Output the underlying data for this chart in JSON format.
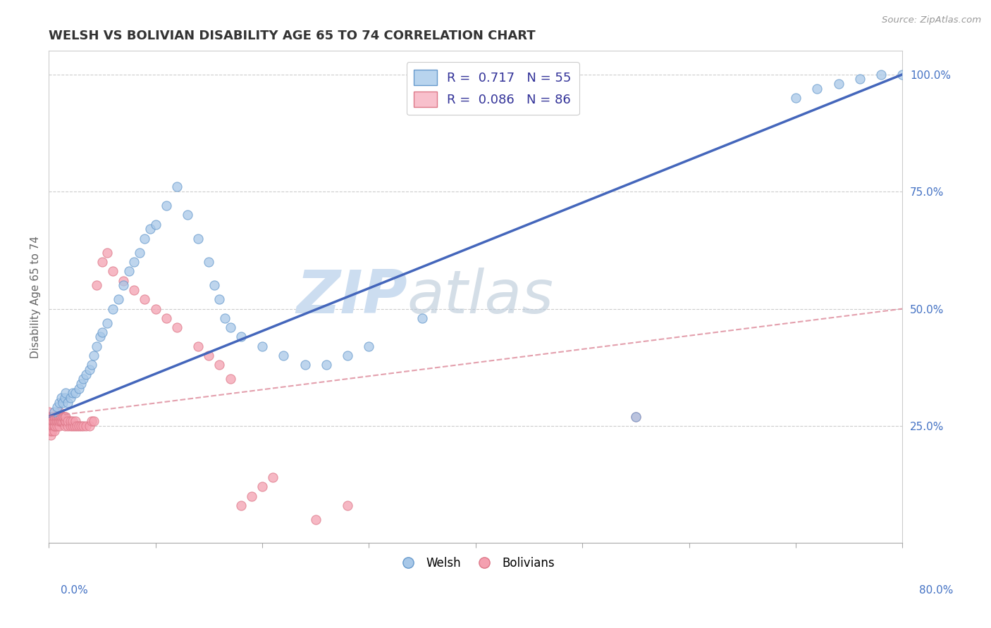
{
  "title": "WELSH VS BOLIVIAN DISABILITY AGE 65 TO 74 CORRELATION CHART",
  "source": "Source: ZipAtlas.com",
  "ylabel": "Disability Age 65 to 74",
  "welsh_R": 0.717,
  "welsh_N": 55,
  "bolivian_R": 0.086,
  "bolivian_N": 86,
  "welsh_color": "#a8c8e8",
  "welsh_edge_color": "#6699cc",
  "bolivian_color": "#f4a0b0",
  "bolivian_edge_color": "#dd7788",
  "welsh_trend_color": "#4466bb",
  "bolivian_trend_color": "#dd8899",
  "legend_welsh_fill": "#b8d4ee",
  "legend_bolivian_fill": "#f8c0cc",
  "watermark_color": "#ccddf0",
  "xmin": 0.0,
  "xmax": 0.8,
  "ymin": 0.0,
  "ymax": 1.05,
  "welsh_trend_x0": 0.0,
  "welsh_trend_y0": 0.27,
  "welsh_trend_x1": 0.8,
  "welsh_trend_y1": 1.0,
  "bolivian_trend_x0": 0.0,
  "bolivian_trend_y0": 0.27,
  "bolivian_trend_x1": 0.8,
  "bolivian_trend_y1": 0.5,
  "welsh_scatter_x": [
    0.005,
    0.008,
    0.01,
    0.012,
    0.013,
    0.015,
    0.016,
    0.018,
    0.02,
    0.022,
    0.025,
    0.028,
    0.03,
    0.032,
    0.035,
    0.038,
    0.04,
    0.042,
    0.045,
    0.048,
    0.05,
    0.055,
    0.06,
    0.065,
    0.07,
    0.075,
    0.08,
    0.085,
    0.09,
    0.095,
    0.1,
    0.11,
    0.12,
    0.13,
    0.14,
    0.15,
    0.155,
    0.16,
    0.165,
    0.17,
    0.18,
    0.2,
    0.22,
    0.24,
    0.26,
    0.28,
    0.3,
    0.35,
    0.55,
    0.7,
    0.72,
    0.74,
    0.76,
    0.78,
    0.8
  ],
  "welsh_scatter_y": [
    0.28,
    0.29,
    0.3,
    0.31,
    0.3,
    0.31,
    0.32,
    0.3,
    0.31,
    0.32,
    0.32,
    0.33,
    0.34,
    0.35,
    0.36,
    0.37,
    0.38,
    0.4,
    0.42,
    0.44,
    0.45,
    0.47,
    0.5,
    0.52,
    0.55,
    0.58,
    0.6,
    0.62,
    0.65,
    0.67,
    0.68,
    0.72,
    0.76,
    0.7,
    0.65,
    0.6,
    0.55,
    0.52,
    0.48,
    0.46,
    0.44,
    0.42,
    0.4,
    0.38,
    0.38,
    0.4,
    0.42,
    0.48,
    0.27,
    0.95,
    0.97,
    0.98,
    0.99,
    1.0,
    1.0
  ],
  "bolivian_scatter_x": [
    0.0,
    0.0,
    0.0,
    0.001,
    0.001,
    0.001,
    0.001,
    0.002,
    0.002,
    0.002,
    0.002,
    0.002,
    0.003,
    0.003,
    0.003,
    0.003,
    0.004,
    0.004,
    0.004,
    0.005,
    0.005,
    0.005,
    0.005,
    0.006,
    0.006,
    0.006,
    0.007,
    0.007,
    0.008,
    0.008,
    0.008,
    0.009,
    0.009,
    0.01,
    0.01,
    0.01,
    0.01,
    0.011,
    0.011,
    0.012,
    0.012,
    0.013,
    0.013,
    0.014,
    0.015,
    0.015,
    0.015,
    0.016,
    0.016,
    0.018,
    0.018,
    0.02,
    0.02,
    0.022,
    0.022,
    0.024,
    0.025,
    0.026,
    0.028,
    0.03,
    0.032,
    0.035,
    0.038,
    0.04,
    0.042,
    0.045,
    0.05,
    0.055,
    0.06,
    0.07,
    0.08,
    0.09,
    0.1,
    0.11,
    0.12,
    0.14,
    0.15,
    0.16,
    0.17,
    0.18,
    0.19,
    0.2,
    0.21,
    0.25,
    0.28,
    0.55
  ],
  "bolivian_scatter_y": [
    0.26,
    0.27,
    0.28,
    0.24,
    0.25,
    0.26,
    0.27,
    0.23,
    0.24,
    0.25,
    0.26,
    0.27,
    0.24,
    0.25,
    0.26,
    0.27,
    0.25,
    0.26,
    0.27,
    0.24,
    0.25,
    0.26,
    0.27,
    0.25,
    0.26,
    0.27,
    0.26,
    0.27,
    0.25,
    0.26,
    0.27,
    0.26,
    0.27,
    0.25,
    0.26,
    0.27,
    0.28,
    0.26,
    0.27,
    0.26,
    0.27,
    0.26,
    0.27,
    0.27,
    0.25,
    0.26,
    0.27,
    0.26,
    0.27,
    0.25,
    0.26,
    0.25,
    0.26,
    0.25,
    0.26,
    0.25,
    0.26,
    0.25,
    0.25,
    0.25,
    0.25,
    0.25,
    0.25,
    0.26,
    0.26,
    0.55,
    0.6,
    0.62,
    0.58,
    0.56,
    0.54,
    0.52,
    0.5,
    0.48,
    0.46,
    0.42,
    0.4,
    0.38,
    0.35,
    0.08,
    0.1,
    0.12,
    0.14,
    0.05,
    0.08,
    0.27
  ]
}
